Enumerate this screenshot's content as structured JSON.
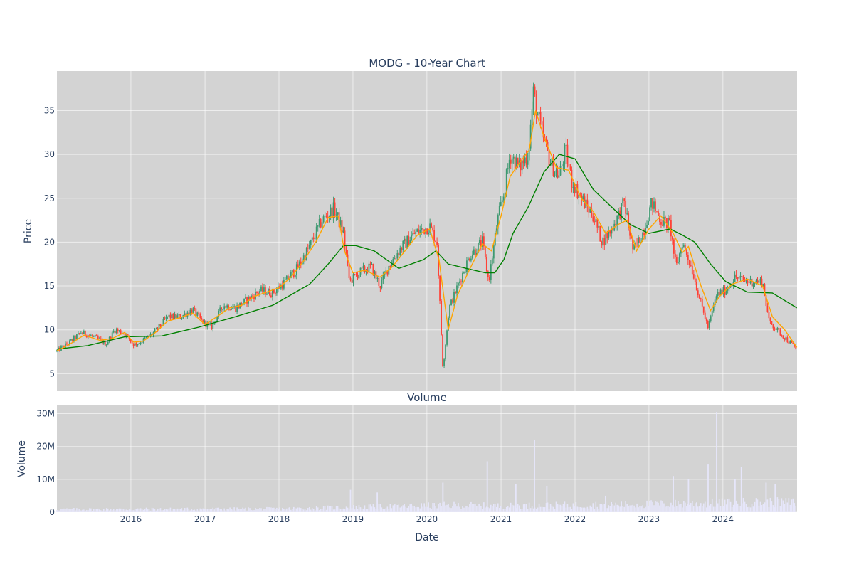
{
  "colors": {
    "background": "#ffffff",
    "plot_bg": "#d3d3d3",
    "grid": "#ffffff",
    "up_candle": "#3d9970",
    "down_candle": "#ff4136",
    "ma_short": "#ffa500",
    "ma_long": "#008000",
    "volume_bar": "#e6e6fa",
    "text": "#2a3f5f"
  },
  "chart_data": [
    {
      "type": "candlestick",
      "title": "MODG - 10-Year Chart",
      "xlabel": "",
      "ylabel": "Price",
      "x_tick_labels": [
        "2016",
        "2017",
        "2018",
        "2019",
        "2020",
        "2021",
        "2022",
        "2023",
        "2024"
      ],
      "y_ticks": [
        5,
        10,
        15,
        20,
        25,
        30,
        35
      ],
      "ylim": [
        3,
        39.5
      ],
      "xlim": [
        "2015-01-01",
        "2025-01-01"
      ],
      "grid": true,
      "price_path": [
        [
          "2015-01-01",
          7.6
        ],
        [
          "2015-03-01",
          8.5
        ],
        [
          "2015-05-01",
          9.7
        ],
        [
          "2015-07-01",
          9.2
        ],
        [
          "2015-09-01",
          8.4
        ],
        [
          "2015-10-15",
          10.0
        ],
        [
          "2015-12-01",
          9.6
        ],
        [
          "2016-01-15",
          8.3
        ],
        [
          "2016-03-01",
          8.8
        ],
        [
          "2016-05-01",
          9.8
        ],
        [
          "2016-07-01",
          11.5
        ],
        [
          "2016-09-01",
          11.5
        ],
        [
          "2016-11-01",
          12.3
        ],
        [
          "2016-12-15",
          11.0
        ],
        [
          "2017-02-01",
          10.3
        ],
        [
          "2017-04-01",
          12.8
        ],
        [
          "2017-06-01",
          12.5
        ],
        [
          "2017-08-01",
          13.5
        ],
        [
          "2017-10-01",
          14.5
        ],
        [
          "2017-12-01",
          14.2
        ],
        [
          "2018-02-01",
          15.5
        ],
        [
          "2018-04-01",
          17.0
        ],
        [
          "2018-06-01",
          19.5
        ],
        [
          "2018-08-01",
          22.5
        ],
        [
          "2018-10-01",
          23.8
        ],
        [
          "2018-11-15",
          21.0
        ],
        [
          "2018-12-15",
          15.5
        ],
        [
          "2019-02-01",
          16.5
        ],
        [
          "2019-04-01",
          17.2
        ],
        [
          "2019-05-15",
          15.0
        ],
        [
          "2019-07-01",
          17.5
        ],
        [
          "2019-09-01",
          19.5
        ],
        [
          "2019-11-01",
          21.0
        ],
        [
          "2020-01-15",
          21.8
        ],
        [
          "2020-02-20",
          20.0
        ],
        [
          "2020-03-20",
          5.5
        ],
        [
          "2020-04-20",
          12.5
        ],
        [
          "2020-06-01",
          15.0
        ],
        [
          "2020-08-01",
          18.5
        ],
        [
          "2020-10-01",
          20.0
        ],
        [
          "2020-11-01",
          15.5
        ],
        [
          "2020-12-15",
          22.5
        ],
        [
          "2021-01-15",
          25.5
        ],
        [
          "2021-02-15",
          30.0
        ],
        [
          "2021-04-01",
          28.5
        ],
        [
          "2021-05-15",
          30.0
        ],
        [
          "2021-06-10",
          37.0
        ],
        [
          "2021-07-15",
          33.0
        ],
        [
          "2021-09-01",
          29.0
        ],
        [
          "2021-10-15",
          27.5
        ],
        [
          "2021-11-15",
          30.5
        ],
        [
          "2021-12-15",
          27.0
        ],
        [
          "2022-02-01",
          25.0
        ],
        [
          "2022-04-01",
          23.0
        ],
        [
          "2022-05-15",
          20.0
        ],
        [
          "2022-07-01",
          21.5
        ],
        [
          "2022-09-01",
          24.5
        ],
        [
          "2022-10-15",
          19.0
        ],
        [
          "2022-12-01",
          21.0
        ],
        [
          "2023-01-15",
          24.5
        ],
        [
          "2023-03-01",
          22.5
        ],
        [
          "2023-04-15",
          22.0
        ],
        [
          "2023-05-15",
          17.0
        ],
        [
          "2023-06-15",
          20.0
        ],
        [
          "2023-08-01",
          17.0
        ],
        [
          "2023-09-15",
          13.0
        ],
        [
          "2023-10-20",
          10.2
        ],
        [
          "2023-12-01",
          14.0
        ],
        [
          "2024-01-15",
          14.5
        ],
        [
          "2024-03-01",
          16.0
        ],
        [
          "2024-05-01",
          15.5
        ],
        [
          "2024-07-15",
          15.5
        ],
        [
          "2024-08-15",
          11.0
        ],
        [
          "2024-10-01",
          9.8
        ],
        [
          "2024-12-31",
          7.8
        ]
      ],
      "series": [
        {
          "data": [
            [
              "2015-01-01",
              7.8
            ],
            [
              "2015-06-01",
              8.2
            ],
            [
              "2015-12-01",
              9.2
            ],
            [
              "2016-06-01",
              9.3
            ],
            [
              "2016-12-01",
              10.3
            ],
            [
              "2017-06-01",
              11.5
            ],
            [
              "2017-12-01",
              12.8
            ],
            [
              "2018-06-01",
              15.2
            ],
            [
              "2018-09-01",
              17.5
            ],
            [
              "2018-11-15",
              19.6
            ],
            [
              "2019-01-15",
              19.6
            ],
            [
              "2019-04-15",
              19.0
            ],
            [
              "2019-08-15",
              17.0
            ],
            [
              "2019-12-15",
              18.0
            ],
            [
              "2020-02-15",
              19.0
            ],
            [
              "2020-04-15",
              17.5
            ],
            [
              "2020-07-15",
              17.0
            ],
            [
              "2020-10-15",
              16.5
            ],
            [
              "2020-12-01",
              16.5
            ],
            [
              "2021-01-15",
              18.0
            ],
            [
              "2021-03-01",
              21.0
            ],
            [
              "2021-05-15",
              24.0
            ],
            [
              "2021-08-01",
              28.0
            ],
            [
              "2021-10-15",
              30.0
            ],
            [
              "2022-01-01",
              29.5
            ],
            [
              "2022-04-01",
              26.0
            ],
            [
              "2022-07-01",
              24.0
            ],
            [
              "2022-10-01",
              22.0
            ],
            [
              "2023-01-01",
              21.0
            ],
            [
              "2023-04-15",
              21.5
            ],
            [
              "2023-06-15",
              20.8
            ],
            [
              "2023-08-15",
              20.0
            ],
            [
              "2023-11-01",
              17.5
            ],
            [
              "2024-01-15",
              15.5
            ],
            [
              "2024-05-01",
              14.3
            ],
            [
              "2024-09-01",
              14.2
            ],
            [
              "2024-12-31",
              12.5
            ]
          ]
        },
        {
          "data": [
            [
              "2015-01-01",
              7.6
            ],
            [
              "2015-03-01",
              8.3
            ],
            [
              "2015-05-15",
              9.4
            ],
            [
              "2015-08-01",
              8.8
            ],
            [
              "2015-10-01",
              9.0
            ],
            [
              "2015-12-01",
              9.7
            ],
            [
              "2016-01-15",
              8.6
            ],
            [
              "2016-03-01",
              8.7
            ],
            [
              "2016-05-01",
              9.7
            ],
            [
              "2016-07-01",
              11.0
            ],
            [
              "2016-09-01",
              11.4
            ],
            [
              "2016-11-01",
              11.9
            ],
            [
              "2017-01-01",
              10.6
            ],
            [
              "2017-03-01",
              11.5
            ],
            [
              "2017-05-01",
              12.5
            ],
            [
              "2017-07-01",
              12.8
            ],
            [
              "2017-09-01",
              13.8
            ],
            [
              "2017-11-01",
              14.3
            ],
            [
              "2018-01-01",
              14.8
            ],
            [
              "2018-03-01",
              16.0
            ],
            [
              "2018-05-01",
              17.8
            ],
            [
              "2018-07-01",
              20.0
            ],
            [
              "2018-09-01",
              22.8
            ],
            [
              "2018-10-20",
              23.0
            ],
            [
              "2018-11-20",
              19.0
            ],
            [
              "2019-01-01",
              16.5
            ],
            [
              "2019-03-01",
              16.8
            ],
            [
              "2019-05-15",
              16.0
            ],
            [
              "2019-07-15",
              17.2
            ],
            [
              "2019-09-15",
              19.0
            ],
            [
              "2019-11-15",
              20.8
            ],
            [
              "2020-01-15",
              21.5
            ],
            [
              "2020-03-01",
              18.0
            ],
            [
              "2020-04-15",
              10.0
            ],
            [
              "2020-06-01",
              14.0
            ],
            [
              "2020-08-01",
              17.0
            ],
            [
              "2020-10-01",
              19.8
            ],
            [
              "2020-11-15",
              19.0
            ],
            [
              "2021-01-01",
              23.0
            ],
            [
              "2021-02-15",
              27.5
            ],
            [
              "2021-04-01",
              29.0
            ],
            [
              "2021-05-20",
              30.5
            ],
            [
              "2021-06-20",
              35.0
            ],
            [
              "2021-08-01",
              32.0
            ],
            [
              "2021-10-01",
              28.5
            ],
            [
              "2021-12-01",
              28.2
            ],
            [
              "2022-02-01",
              25.0
            ],
            [
              "2022-04-01",
              23.5
            ],
            [
              "2022-06-01",
              21.0
            ],
            [
              "2022-08-01",
              22.0
            ],
            [
              "2022-09-15",
              22.5
            ],
            [
              "2022-11-01",
              19.0
            ],
            [
              "2023-01-01",
              21.5
            ],
            [
              "2023-03-01",
              23.0
            ],
            [
              "2023-05-01",
              21.0
            ],
            [
              "2023-06-15",
              18.8
            ],
            [
              "2023-07-15",
              19.5
            ],
            [
              "2023-09-15",
              15.0
            ],
            [
              "2023-11-01",
              12.2
            ],
            [
              "2023-12-15",
              13.8
            ],
            [
              "2024-02-15",
              15.2
            ],
            [
              "2024-05-01",
              15.8
            ],
            [
              "2024-07-15",
              15.0
            ],
            [
              "2024-09-01",
              11.5
            ],
            [
              "2024-11-01",
              10.0
            ],
            [
              "2024-12-31",
              8.0
            ]
          ]
        }
      ]
    },
    {
      "type": "bar",
      "title": "Volume",
      "xlabel": "Date",
      "ylabel": "Volume",
      "x_tick_labels": [
        "2016",
        "2017",
        "2018",
        "2019",
        "2020",
        "2021",
        "2022",
        "2023",
        "2024"
      ],
      "y_tick_labels": [
        "0",
        "10M",
        "20M",
        "30M"
      ],
      "y_ticks": [
        0,
        10,
        20,
        30
      ],
      "y_unit": "M",
      "ylim": [
        0,
        32.5
      ],
      "xlim": [
        "2015-01-01",
        "2025-01-01"
      ],
      "baseline_level": [
        [
          "2015-01-01",
          1.0
        ],
        [
          "2018-01-01",
          1.2
        ],
        [
          "2019-06-01",
          2.0
        ],
        [
          "2020-06-01",
          2.5
        ],
        [
          "2021-01-01",
          2.2
        ],
        [
          "2022-01-01",
          2.5
        ],
        [
          "2023-06-01",
          3.0
        ],
        [
          "2024-06-01",
          3.5
        ],
        [
          "2024-12-31",
          3.5
        ]
      ],
      "spikes": [
        [
          "2018-12-20",
          6.8
        ],
        [
          "2019-05-01",
          6.0
        ],
        [
          "2020-03-20",
          9.0
        ],
        [
          "2020-10-25",
          15.5
        ],
        [
          "2021-03-15",
          8.5
        ],
        [
          "2021-06-15",
          22.0
        ],
        [
          "2021-08-15",
          8.0
        ],
        [
          "2022-06-01",
          5.0
        ],
        [
          "2023-05-01",
          11.0
        ],
        [
          "2023-07-15",
          10.0
        ],
        [
          "2023-10-20",
          14.5
        ],
        [
          "2023-12-01",
          30.5
        ],
        [
          "2024-03-01",
          10.0
        ],
        [
          "2024-04-01",
          13.8
        ],
        [
          "2024-08-01",
          9.0
        ],
        [
          "2024-09-15",
          8.5
        ]
      ]
    }
  ]
}
